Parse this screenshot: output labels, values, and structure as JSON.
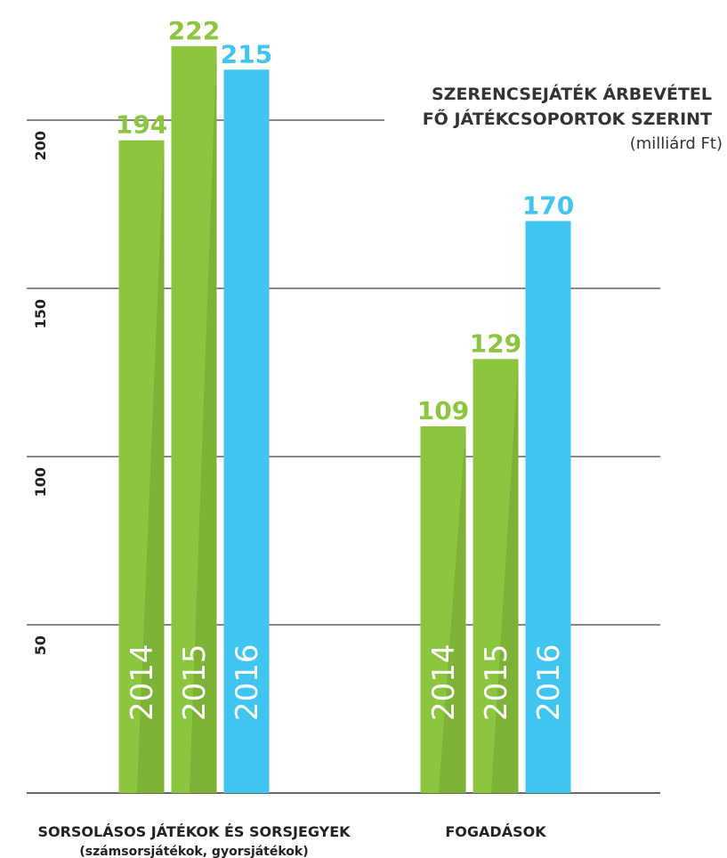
{
  "chart_data": {
    "type": "bar",
    "title": [
      "SZERENCSEJÁTÉK ÁRBEVÉTEL",
      "FŐ JÁTÉKCSOPORTOK SZERINT"
    ],
    "subtitle": "(milliárd Ft)",
    "categories": [
      "SORSOLÁSOS JÁTÉKOK ÉS SORSJEGYEK",
      "FOGADÁSOK"
    ],
    "category_notes": [
      "(számsorsjátékok, gyorsjátékok)",
      null
    ],
    "series": [
      {
        "name": "2014",
        "color": "#8cc63f",
        "values": [
          194,
          109
        ]
      },
      {
        "name": "2015",
        "color": "#8cc63f",
        "values": [
          222,
          129
        ]
      },
      {
        "name": "2016",
        "color": "#40c4f0",
        "values": [
          215,
          170
        ]
      }
    ],
    "ylim": [
      0,
      235
    ],
    "yticks": [
      50,
      100,
      150,
      200
    ],
    "grid": true
  }
}
